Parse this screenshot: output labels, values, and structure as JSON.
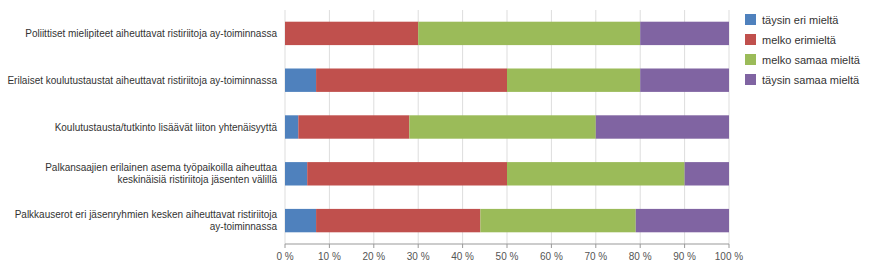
{
  "chart_data": {
    "type": "bar",
    "orientation": "horizontal",
    "stacked": true,
    "categories": [
      "Palkkauserot eri jäsenryhmien kesken aiheuttavat ristiriitoja\nay-toiminnassa",
      "Palkansaajien erilainen asema työpaikoilla aiheuttaa\nkeskinäisiä ristiriitoja jäsenten välillä",
      "Koulutustausta/tutkinto lisäävät liiton yhtenäisyyttä",
      "Erilaiset koulutustaustat aiheuttavat ristiriitoja ay-toiminnassa",
      "Poliittiset mielipiteet aiheuttavat ristiriitoja ay-toiminnassa"
    ],
    "series": [
      {
        "name": "täysin eri mieltä",
        "color": "#4F81BD",
        "values": [
          7,
          5,
          3,
          7,
          0
        ]
      },
      {
        "name": "melko erimieltä",
        "color": "#C0504D",
        "values": [
          37,
          45,
          25,
          43,
          30
        ]
      },
      {
        "name": "melko samaa mieltä",
        "color": "#9BBB59",
        "values": [
          35,
          40,
          42,
          30,
          50
        ]
      },
      {
        "name": "täysin samaa mieltä",
        "color": "#8064A2",
        "values": [
          21,
          10,
          30,
          20,
          20
        ]
      }
    ],
    "xlim": [
      0,
      100
    ],
    "xticks": [
      {
        "value": 0,
        "label": "0 %"
      },
      {
        "value": 10,
        "label": "10 %"
      },
      {
        "value": 20,
        "label": "20 %"
      },
      {
        "value": 30,
        "label": "30 %"
      },
      {
        "value": 40,
        "label": "40 %"
      },
      {
        "value": 50,
        "label": "50 %"
      },
      {
        "value": 60,
        "label": "60 %"
      },
      {
        "value": 70,
        "label": "70 %"
      },
      {
        "value": 80,
        "label": "80 %"
      },
      {
        "value": 90,
        "label": "90 %"
      },
      {
        "value": 100,
        "label": "100 %"
      }
    ],
    "grid": true,
    "legend": "right"
  }
}
